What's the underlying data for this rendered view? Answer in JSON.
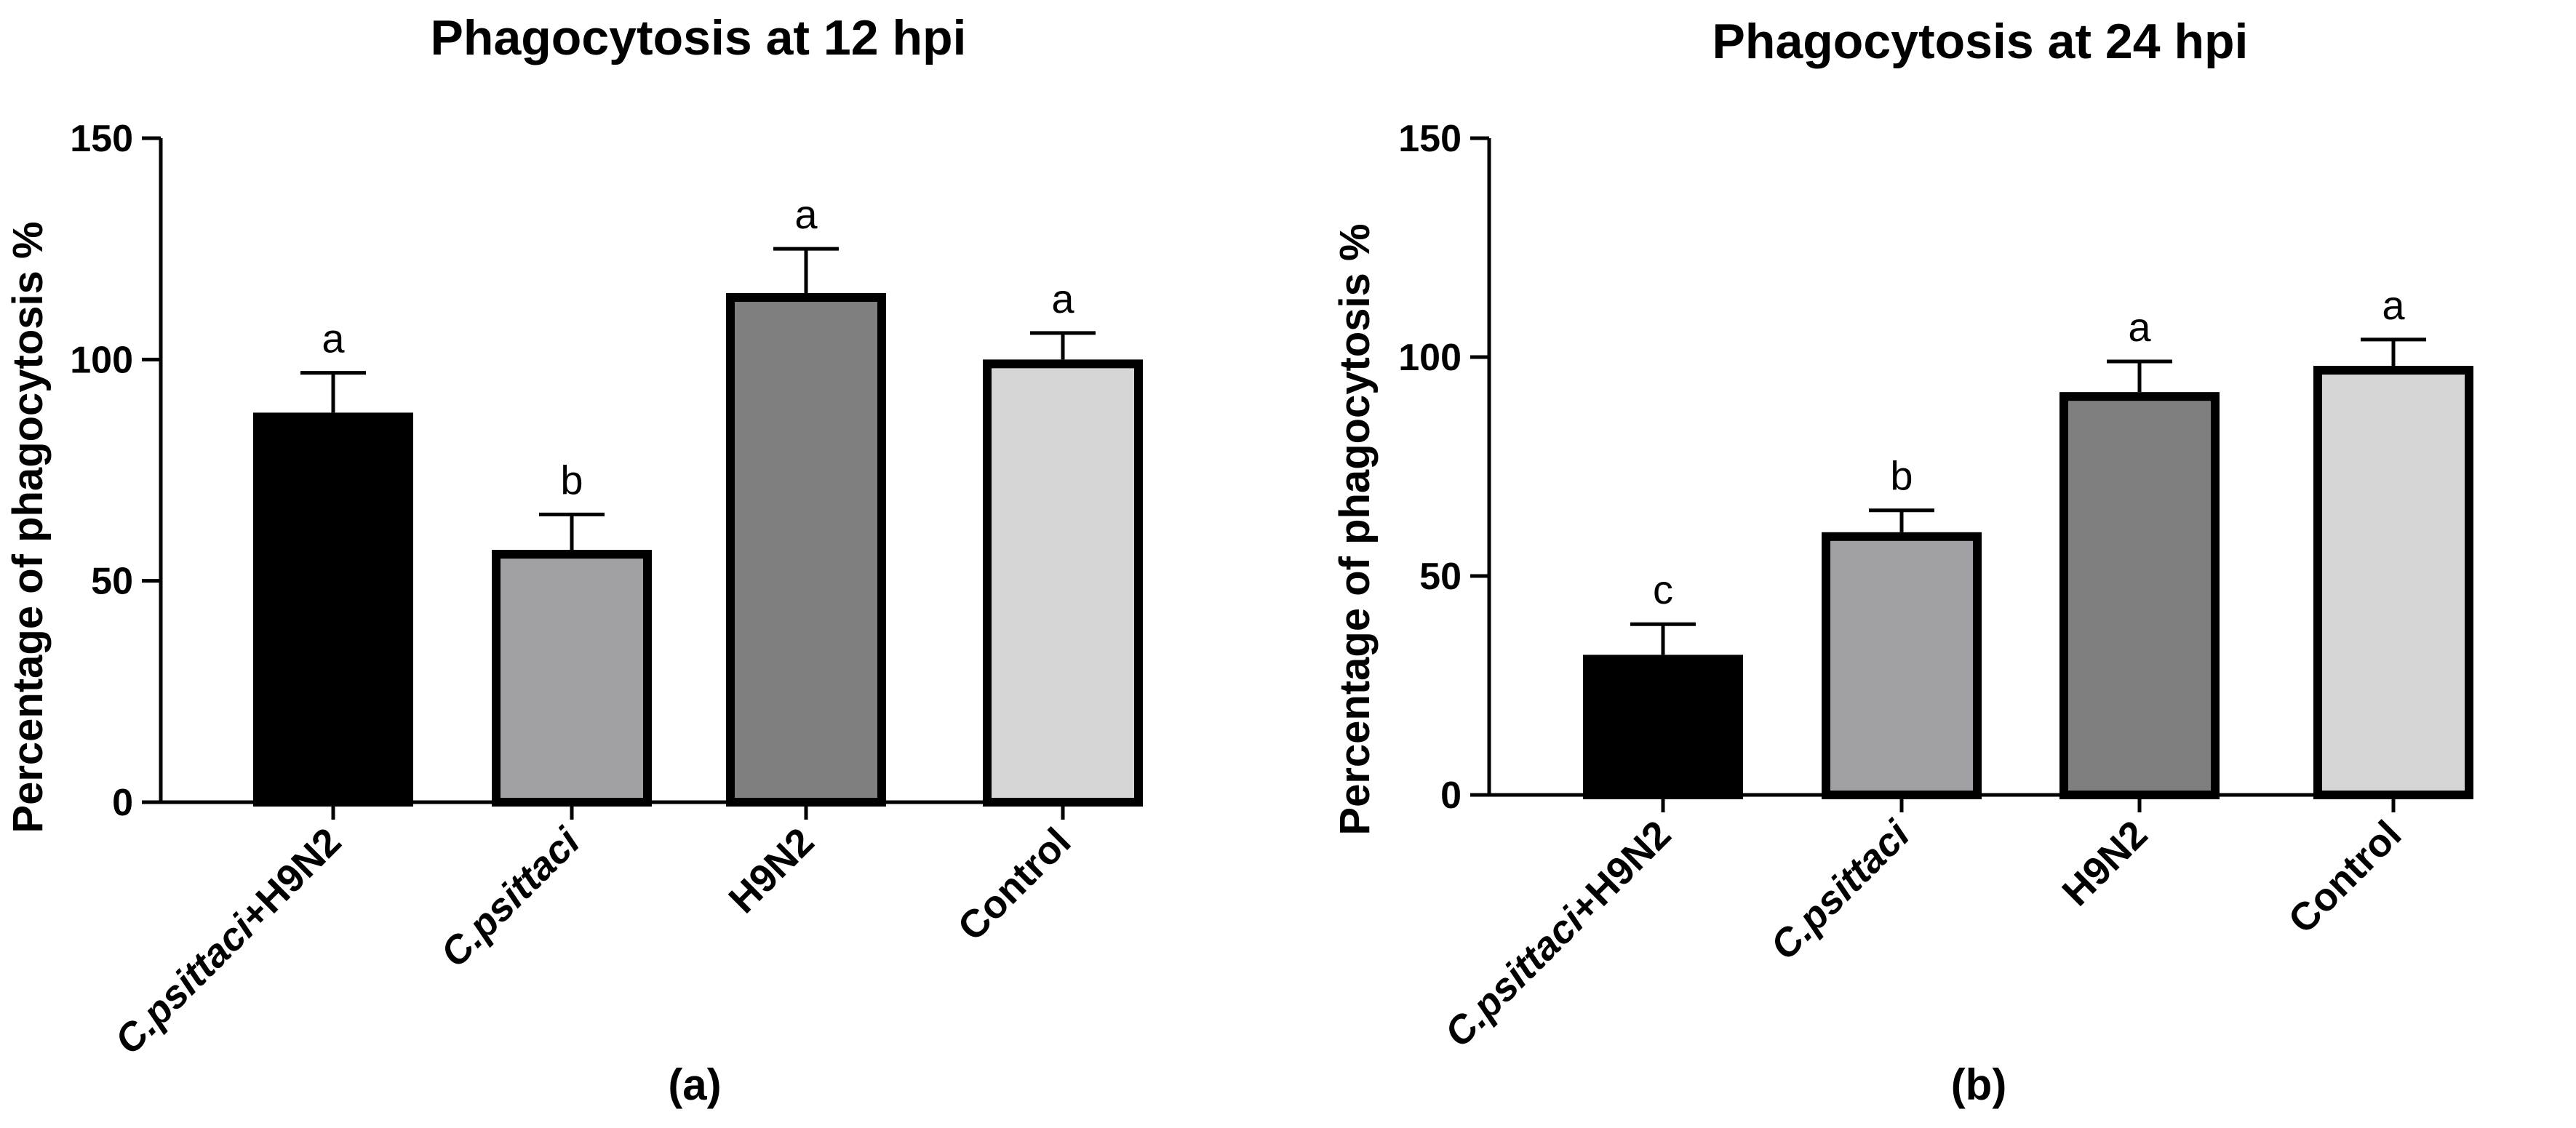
{
  "chart_data": [
    {
      "type": "bar",
      "panel": "(a)",
      "title": "Phagocytosis at 12 hpi",
      "xlabel": "",
      "ylabel": "Percentage of phagocytosis %",
      "ylim": [
        0,
        150
      ],
      "yticks": [
        "0",
        "50",
        "100",
        "150"
      ],
      "categories": [
        {
          "prefix": "C.psittaci",
          "suffix": "+H9N2",
          "italic_prefix": true
        },
        {
          "prefix": "C.psittaci",
          "suffix": "",
          "italic_prefix": true
        },
        {
          "prefix": "",
          "suffix": "H9N2",
          "italic_prefix": false
        },
        {
          "prefix": "",
          "suffix": "Control",
          "italic_prefix": false
        }
      ],
      "values": [
        88,
        57,
        115,
        100
      ],
      "errors": [
        9,
        8,
        10,
        6
      ],
      "significance": [
        "a",
        "b",
        "a",
        "a"
      ],
      "colors": [
        "#000000",
        "#a0a0a5",
        "#7f7f7f",
        "#d6d6d6"
      ]
    },
    {
      "type": "bar",
      "panel": "(b)",
      "title": "Phagocytosis at 24 hpi",
      "xlabel": "",
      "ylabel": "Percentage of phagocytosis %",
      "ylim": [
        0,
        150
      ],
      "yticks": [
        "0",
        "50",
        "100",
        "150"
      ],
      "categories": [
        {
          "prefix": "C.psittaci",
          "suffix": "+H9N2",
          "italic_prefix": true
        },
        {
          "prefix": "C.psittaci",
          "suffix": "",
          "italic_prefix": true
        },
        {
          "prefix": "",
          "suffix": "H9N2",
          "italic_prefix": false
        },
        {
          "prefix": "",
          "suffix": "Control",
          "italic_prefix": false
        }
      ],
      "values": [
        32,
        60,
        92,
        98
      ],
      "errors": [
        7,
        5,
        7,
        6
      ],
      "significance": [
        "c",
        "b",
        "a",
        "a"
      ],
      "colors": [
        "#000000",
        "#a0a0a5",
        "#7f7f7f",
        "#d6d6d6"
      ]
    }
  ]
}
